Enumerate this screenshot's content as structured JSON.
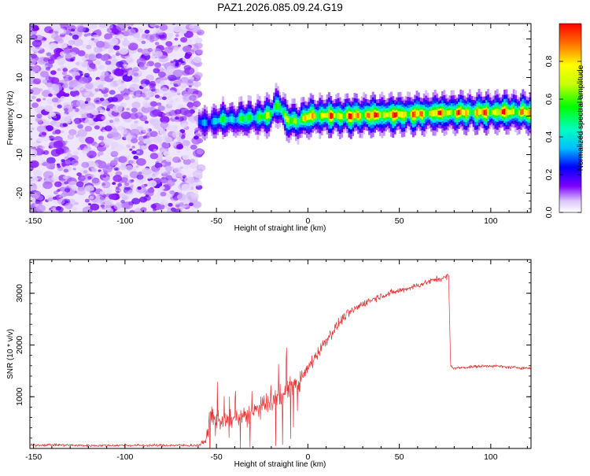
{
  "title": "PAZ1.2026.085.09.24.G19",
  "chart_data": [
    {
      "type": "heatmap",
      "name": "spectrogram",
      "xlabel": "Height of straight line (km)",
      "ylabel": "Frequency (Hz)",
      "xlim": [
        -152,
        122
      ],
      "ylim": [
        -25,
        24
      ],
      "xticks": [
        -150,
        -100,
        -50,
        0,
        50,
        100
      ],
      "yticks": [
        -20,
        -10,
        0,
        10,
        20
      ],
      "noise_region_x": [
        -152,
        -60
      ],
      "ridge": {
        "x": [
          -60,
          -55,
          -50,
          -45,
          -40,
          -35,
          -30,
          -25,
          -20,
          -18,
          -16,
          -14,
          -12,
          -10,
          -5,
          0,
          10,
          20,
          30,
          40,
          50,
          60,
          70,
          80,
          90,
          100,
          110,
          122
        ],
        "freq": [
          -1.5,
          -1.8,
          -1.2,
          -0.8,
          -1.0,
          -0.6,
          -0.4,
          -0.2,
          0.5,
          2.5,
          2.8,
          1.0,
          -0.5,
          -1.2,
          -1.4,
          -0.1,
          0.2,
          0.0,
          0.2,
          0.3,
          0.4,
          0.6,
          0.8,
          0.9,
          1.0,
          1.0,
          1.1,
          0.9
        ],
        "amplitude": [
          0.3,
          0.35,
          0.45,
          0.5,
          0.5,
          0.55,
          0.6,
          0.62,
          0.65,
          0.7,
          0.7,
          0.65,
          0.6,
          0.72,
          0.78,
          0.82,
          0.88,
          0.9,
          0.95,
          0.95,
          0.92,
          0.9,
          0.9,
          0.9,
          0.88,
          0.9,
          0.92,
          0.85
        ]
      },
      "colorbar": {
        "label": "Normalized spectral amplitude",
        "range": [
          0.0,
          1.0
        ],
        "ticks": [
          0.0,
          0.2,
          0.4,
          0.6,
          0.8
        ],
        "tick_labels": [
          "0.0",
          "0.2",
          "0.4",
          "0.6",
          "0.8"
        ]
      }
    },
    {
      "type": "line",
      "name": "snr",
      "xlabel": "Height of straight line (km)",
      "ylabel": "SNR (10 * v/v)",
      "xlim": [
        -152,
        122
      ],
      "ylim": [
        0,
        3650
      ],
      "xticks": [
        -150,
        -100,
        -50,
        0,
        50,
        100
      ],
      "yticks": [
        1000,
        2000,
        3000
      ],
      "color": "#e83030",
      "series": [
        {
          "name": "SNR",
          "x": [
            -152,
            -140,
            -120,
            -100,
            -80,
            -60,
            -56,
            -53,
            -50,
            -45,
            -40,
            -35,
            -30,
            -25,
            -20,
            -15,
            -10,
            -5,
            0,
            10,
            20,
            30,
            40,
            50,
            60,
            70,
            75,
            77,
            78,
            80,
            90,
            100,
            110,
            122
          ],
          "y": [
            60,
            70,
            55,
            60,
            60,
            60,
            140,
            600,
            580,
            520,
            580,
            620,
            700,
            800,
            900,
            1000,
            1150,
            1250,
            1550,
            2100,
            2550,
            2800,
            2950,
            3050,
            3150,
            3270,
            3300,
            3350,
            1600,
            1550,
            1580,
            1600,
            1570,
            1550
          ],
          "noise": [
            45,
            45,
            45,
            45,
            45,
            45,
            90,
            380,
            320,
            260,
            280,
            300,
            320,
            350,
            380,
            380,
            380,
            300,
            260,
            200,
            160,
            130,
            110,
            100,
            100,
            100,
            100,
            100,
            50,
            50,
            50,
            50,
            50,
            50
          ]
        }
      ]
    }
  ]
}
